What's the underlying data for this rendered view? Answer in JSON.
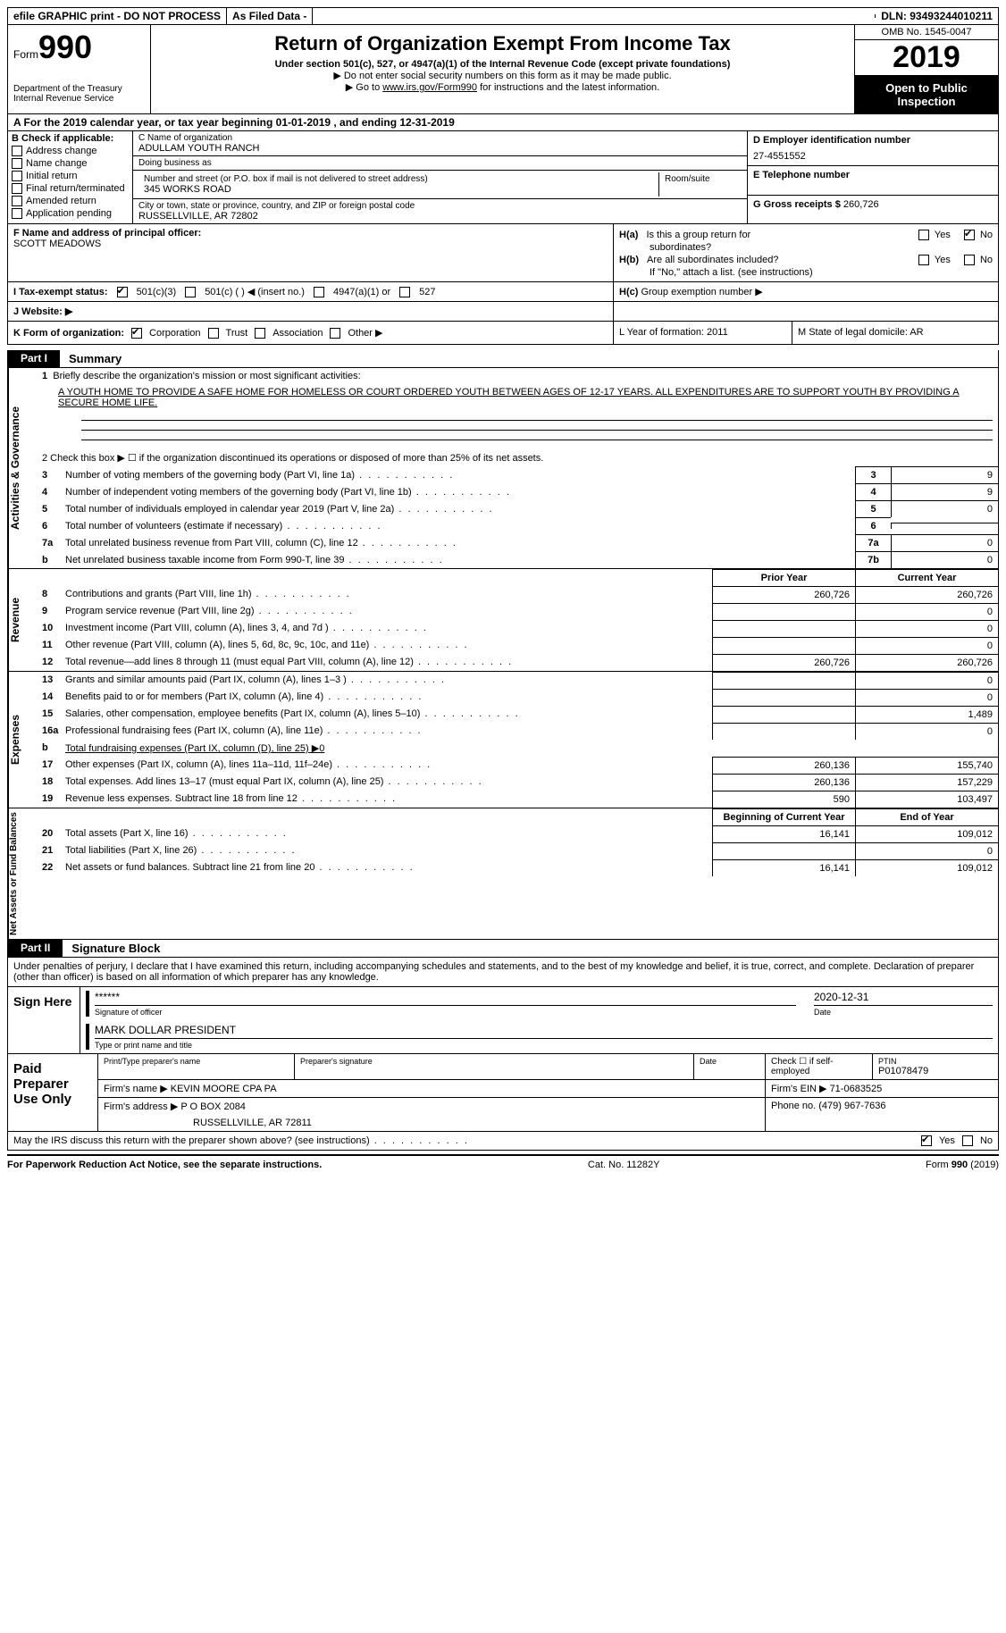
{
  "top": {
    "efile": "efile GRAPHIC print - DO NOT PROCESS",
    "asFiled": "As Filed Data -",
    "dln": "DLN: 93493244010211"
  },
  "header": {
    "formWord": "Form",
    "formNum": "990",
    "dept": "Department of the Treasury\nInternal Revenue Service",
    "title": "Return of Organization Exempt From Income Tax",
    "sub1": "Under section 501(c), 527, or 4947(a)(1) of the Internal Revenue Code (except private foundations)",
    "sub2": "▶ Do not enter social security numbers on this form as it may be made public.",
    "sub3": "▶ Go to www.irs.gov/Form990 for instructions and the latest information.",
    "omb": "OMB No. 1545-0047",
    "year": "2019",
    "open": "Open to Public Inspection"
  },
  "rowA": "A   For the 2019 calendar year, or tax year beginning 01-01-2019   , and ending 12-31-2019",
  "colB": {
    "title": "B Check if applicable:",
    "items": [
      "Address change",
      "Name change",
      "Initial return",
      "Final return/terminated",
      "Amended return",
      "Application pending"
    ]
  },
  "colC": {
    "nameLabel": "C Name of organization",
    "name": "ADULLAM YOUTH RANCH",
    "dbaLabel": "Doing business as",
    "dba": "",
    "streetLabel": "Number and street (or P.O. box if mail is not delivered to street address)",
    "street": "345 WORKS ROAD",
    "roomLabel": "Room/suite",
    "cityLabel": "City or town, state or province, country, and ZIP or foreign postal code",
    "city": "RUSSELLVILLE, AR  72802"
  },
  "colD": {
    "einLabel": "D Employer identification number",
    "ein": "27-4551552",
    "phoneLabel": "E Telephone number",
    "phone": "",
    "grossLabel": "G Gross receipts $",
    "gross": "260,726"
  },
  "rowF": {
    "label": "F  Name and address of principal officer:",
    "name": "SCOTT MEADOWS"
  },
  "rowH": {
    "ha": "H(a)  Is this a group return for subordinates?",
    "hb": "H(b)  Are all subordinates included?",
    "hbNote": "If \"No,\" attach a list. (see instructions)",
    "hc": "H(c)  Group exemption number ▶",
    "yes": "Yes",
    "no": "No"
  },
  "rowI": {
    "label": "I   Tax-exempt status:",
    "opt1": "501(c)(3)",
    "opt2": "501(c) (   ) ◀ (insert no.)",
    "opt3": "4947(a)(1) or",
    "opt4": "527"
  },
  "rowJ": "J   Website: ▶",
  "rowK": {
    "label": "K Form of organization:",
    "opts": [
      "Corporation",
      "Trust",
      "Association",
      "Other ▶"
    ]
  },
  "rowL": "L Year of formation: 2011",
  "rowM": "M State of legal domicile: AR",
  "part1": {
    "label": "Part I",
    "title": "Summary"
  },
  "activities": {
    "label": "Activities & Governance",
    "line1": "1  Briefly describe the organization's mission or most significant activities:",
    "line1text": "A YOUTH HOME TO PROVIDE A SAFE HOME FOR HOMELESS OR COURT ORDERED YOUTH BETWEEN AGES OF 12-17 YEARS. ALL EXPENDITURES ARE TO SUPPORT YOUTH BY PROVIDING A SECURE HOME LIFE.",
    "line2": "2   Check this box ▶ ☐  if the organization discontinued its operations or disposed of more than 25% of its net assets.",
    "lines": [
      {
        "n": "3",
        "desc": "Number of voting members of the governing body (Part VI, line 1a)",
        "box": "3",
        "val": "9"
      },
      {
        "n": "4",
        "desc": "Number of independent voting members of the governing body (Part VI, line 1b)",
        "box": "4",
        "val": "9"
      },
      {
        "n": "5",
        "desc": "Total number of individuals employed in calendar year 2019 (Part V, line 2a)",
        "box": "5",
        "val": "0"
      },
      {
        "n": "6",
        "desc": "Total number of volunteers (estimate if necessary)",
        "box": "6",
        "val": ""
      },
      {
        "n": "7a",
        "desc": "Total unrelated business revenue from Part VIII, column (C), line 12",
        "box": "7a",
        "val": "0"
      },
      {
        "n": "b",
        "desc": "Net unrelated business taxable income from Form 990-T, line 39",
        "box": "7b",
        "val": "0"
      }
    ]
  },
  "revenue": {
    "label": "Revenue",
    "header": {
      "c1": "Prior Year",
      "c2": "Current Year"
    },
    "lines": [
      {
        "n": "8",
        "desc": "Contributions and grants (Part VIII, line 1h)",
        "c1": "260,726",
        "c2": "260,726"
      },
      {
        "n": "9",
        "desc": "Program service revenue (Part VIII, line 2g)",
        "c1": "",
        "c2": "0"
      },
      {
        "n": "10",
        "desc": "Investment income (Part VIII, column (A), lines 3, 4, and 7d )",
        "c1": "",
        "c2": "0"
      },
      {
        "n": "11",
        "desc": "Other revenue (Part VIII, column (A), lines 5, 6d, 8c, 9c, 10c, and 11e)",
        "c1": "",
        "c2": "0"
      },
      {
        "n": "12",
        "desc": "Total revenue—add lines 8 through 11 (must equal Part VIII, column (A), line 12)",
        "c1": "260,726",
        "c2": "260,726"
      }
    ]
  },
  "expenses": {
    "label": "Expenses",
    "lines": [
      {
        "n": "13",
        "desc": "Grants and similar amounts paid (Part IX, column (A), lines 1–3 )",
        "c1": "",
        "c2": "0"
      },
      {
        "n": "14",
        "desc": "Benefits paid to or for members (Part IX, column (A), line 4)",
        "c1": "",
        "c2": "0"
      },
      {
        "n": "15",
        "desc": "Salaries, other compensation, employee benefits (Part IX, column (A), lines 5–10)",
        "c1": "",
        "c2": "1,489"
      },
      {
        "n": "16a",
        "desc": "Professional fundraising fees (Part IX, column (A), line 11e)",
        "c1": "",
        "c2": "0"
      },
      {
        "n": "b",
        "desc": "Total fundraising expenses (Part IX, column (D), line 25) ▶0",
        "c1": null,
        "c2": null
      },
      {
        "n": "17",
        "desc": "Other expenses (Part IX, column (A), lines 11a–11d, 11f–24e)",
        "c1": "260,136",
        "c2": "155,740"
      },
      {
        "n": "18",
        "desc": "Total expenses. Add lines 13–17 (must equal Part IX, column (A), line 25)",
        "c1": "260,136",
        "c2": "157,229"
      },
      {
        "n": "19",
        "desc": "Revenue less expenses. Subtract line 18 from line 12",
        "c1": "590",
        "c2": "103,497"
      }
    ]
  },
  "netassets": {
    "label": "Net Assets or Fund Balances",
    "header": {
      "c1": "Beginning of Current Year",
      "c2": "End of Year"
    },
    "lines": [
      {
        "n": "20",
        "desc": "Total assets (Part X, line 16)",
        "c1": "16,141",
        "c2": "109,012"
      },
      {
        "n": "21",
        "desc": "Total liabilities (Part X, line 26)",
        "c1": "",
        "c2": "0"
      },
      {
        "n": "22",
        "desc": "Net assets or fund balances. Subtract line 21 from line 20",
        "c1": "16,141",
        "c2": "109,012"
      }
    ]
  },
  "part2": {
    "label": "Part II",
    "title": "Signature Block",
    "perjury": "Under penalties of perjury, I declare that I have examined this return, including accompanying schedules and statements, and to the best of my knowledge and belief, it is true, correct, and complete. Declaration of preparer (other than officer) is based on all information of which preparer has any knowledge."
  },
  "sign": {
    "label": "Sign Here",
    "stars": "******",
    "sigLabel": "Signature of officer",
    "date": "2020-12-31",
    "dateLabel": "Date",
    "name": "MARK DOLLAR PRESIDENT",
    "nameLabel": "Type or print name and title"
  },
  "preparer": {
    "label": "Paid Preparer Use Only",
    "r1": {
      "nameLabel": "Print/Type preparer's name",
      "sigLabel": "Preparer's signature",
      "dateLabel": "Date",
      "checkLabel": "Check ☐ if self-employed",
      "ptinLabel": "PTIN",
      "ptin": "P01078479"
    },
    "r2": {
      "firmLabel": "Firm's name    ▶",
      "firm": "KEVIN MOORE CPA PA",
      "einLabel": "Firm's EIN ▶",
      "ein": "71-0683525"
    },
    "r3": {
      "addrLabel": "Firm's address ▶",
      "addr": "P O BOX 2084",
      "addr2": "RUSSELLVILLE, AR  72811",
      "phoneLabel": "Phone no.",
      "phone": "(479) 967-7636"
    }
  },
  "discuss": {
    "text": "May the IRS discuss this return with the preparer shown above? (see instructions)",
    "yes": "Yes",
    "no": "No"
  },
  "footer": {
    "left": "For Paperwork Reduction Act Notice, see the separate instructions.",
    "mid": "Cat. No. 11282Y",
    "right": "Form 990 (2019)"
  }
}
